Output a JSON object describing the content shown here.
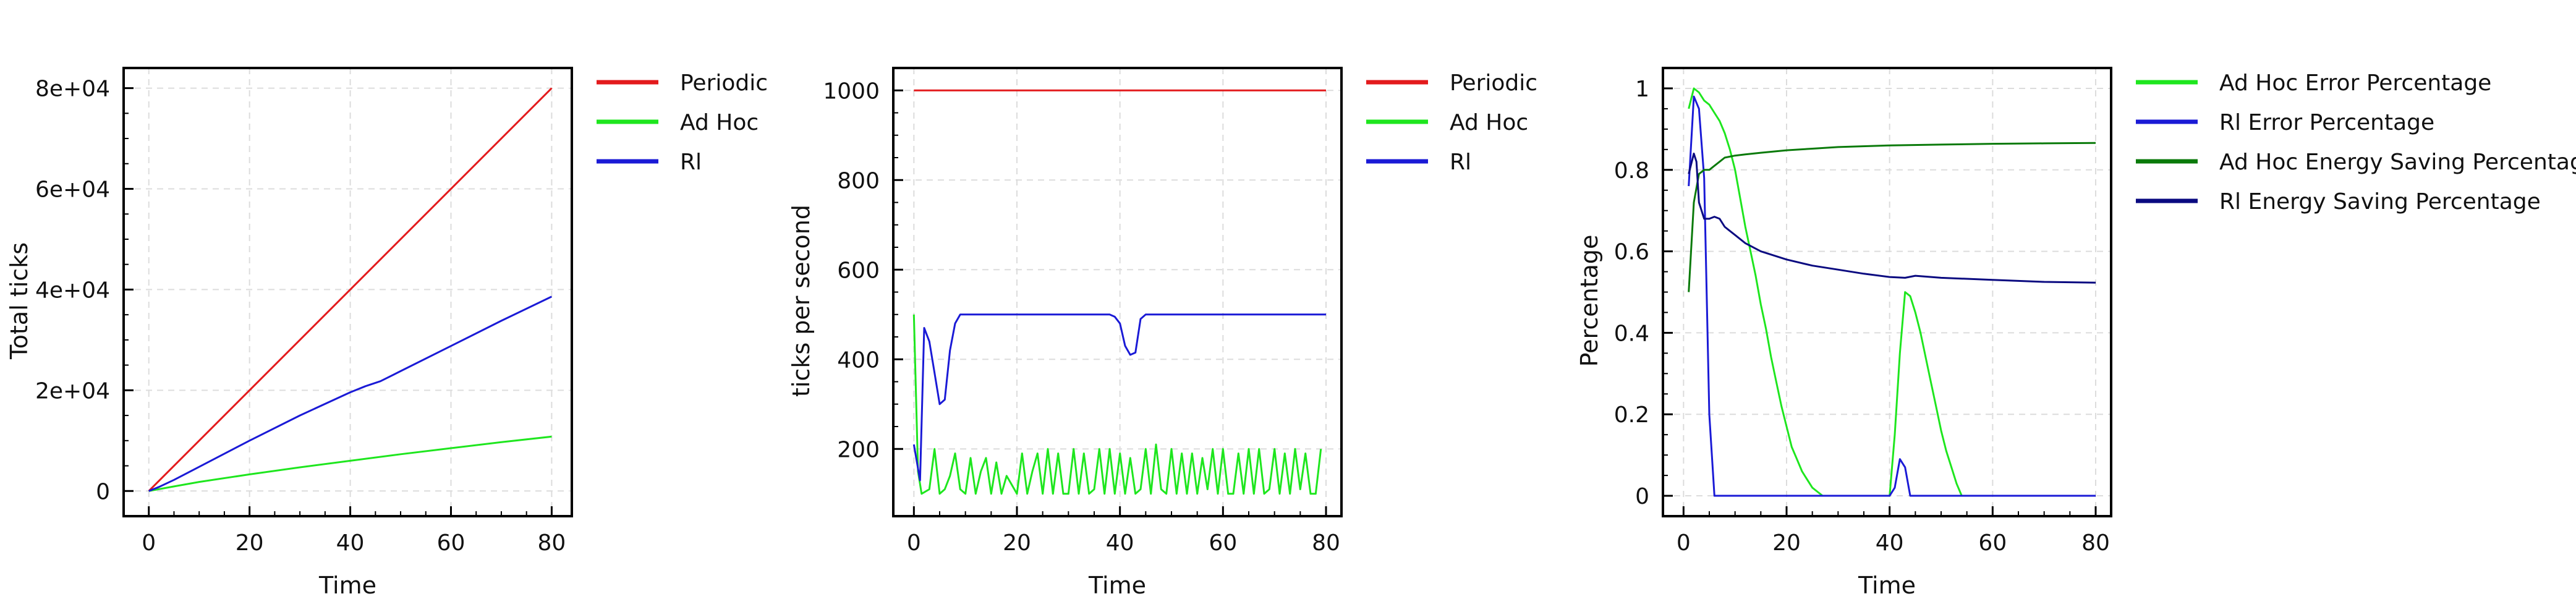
{
  "chart_data": [
    {
      "type": "line",
      "xlabel": "Time",
      "ylabel": "Total ticks",
      "xlim": [
        -5,
        84
      ],
      "ylim": [
        -5000,
        84000
      ],
      "xticks": [
        0,
        20,
        40,
        60,
        80
      ],
      "xtick_labels": [
        "0",
        "20",
        "40",
        "60",
        "80"
      ],
      "yticks": [
        0,
        20000,
        40000,
        60000,
        80000
      ],
      "ytick_labels": [
        "0",
        "2e+04",
        "4e+04",
        "6e+04",
        "8e+04"
      ],
      "grid": true,
      "legend_placement": "outside-right",
      "series": [
        {
          "name": "Periodic",
          "color": "#e31a1c",
          "x": [
            0,
            80
          ],
          "y": [
            0,
            80000
          ]
        },
        {
          "name": "Ad Hoc",
          "color": "#1ee61e",
          "x": [
            0,
            5,
            10,
            20,
            30,
            40,
            50,
            60,
            70,
            80
          ],
          "y": [
            0,
            900,
            1800,
            3300,
            4700,
            6000,
            7300,
            8500,
            9700,
            10800
          ]
        },
        {
          "name": "Rl",
          "color": "#1a1ad6",
          "x": [
            0,
            2,
            5,
            10,
            20,
            30,
            40,
            43,
            46,
            50,
            60,
            70,
            80
          ],
          "y": [
            0,
            800,
            2200,
            4800,
            10000,
            15000,
            19600,
            20800,
            21800,
            23800,
            28800,
            33800,
            38600
          ]
        }
      ]
    },
    {
      "type": "line",
      "xlabel": "Time",
      "ylabel": "ticks per second",
      "xlim": [
        -4,
        83
      ],
      "ylim": [
        50,
        1050
      ],
      "xticks": [
        0,
        20,
        40,
        60,
        80
      ],
      "xtick_labels": [
        "0",
        "20",
        "40",
        "60",
        "80"
      ],
      "yticks": [
        200,
        400,
        600,
        800,
        1000
      ],
      "ytick_labels": [
        "200",
        "400",
        "600",
        "800",
        "1000"
      ],
      "grid": true,
      "legend_placement": "outside-right",
      "series": [
        {
          "name": "Periodic",
          "color": "#e31a1c",
          "x": [
            0,
            80
          ],
          "y": [
            1000,
            1000
          ]
        },
        {
          "name": "Ad Hoc",
          "color": "#1ee61e",
          "x": [
            0,
            0.8,
            1.5,
            3,
            4,
            5,
            6,
            7,
            8,
            9,
            10,
            11,
            12,
            13,
            14,
            15,
            16,
            17,
            18,
            19,
            20,
            21,
            22,
            23,
            24,
            25,
            26,
            27,
            28,
            29,
            30,
            31,
            32,
            33,
            34,
            35,
            36,
            37,
            38,
            39,
            40,
            41,
            42,
            43,
            44,
            45,
            46,
            47,
            48,
            49,
            50,
            51,
            52,
            53,
            54,
            55,
            56,
            57,
            58,
            59,
            60,
            61,
            62,
            63,
            64,
            65,
            66,
            67,
            68,
            69,
            70,
            71,
            72,
            73,
            74,
            75,
            76,
            77,
            78,
            79
          ],
          "y": [
            500,
            150,
            100,
            110,
            200,
            100,
            110,
            140,
            190,
            110,
            100,
            180,
            100,
            150,
            180,
            100,
            170,
            100,
            140,
            120,
            100,
            190,
            100,
            150,
            190,
            100,
            200,
            100,
            190,
            100,
            100,
            200,
            100,
            190,
            100,
            110,
            200,
            100,
            200,
            100,
            190,
            100,
            180,
            100,
            110,
            200,
            100,
            210,
            110,
            100,
            200,
            100,
            190,
            100,
            190,
            100,
            180,
            110,
            200,
            100,
            200,
            100,
            100,
            190,
            100,
            200,
            100,
            200,
            100,
            110,
            200,
            100,
            190,
            100,
            200,
            110,
            190,
            100,
            100,
            200
          ]
        },
        {
          "name": "Rl",
          "color": "#1a1ad6",
          "x": [
            0,
            1.2,
            2,
            3,
            4,
            5,
            6,
            7,
            8,
            9,
            10,
            38,
            39,
            40,
            41,
            42,
            43,
            44,
            45,
            46,
            80
          ],
          "y": [
            210,
            130,
            470,
            440,
            370,
            300,
            310,
            420,
            480,
            500,
            500,
            500,
            495,
            480,
            430,
            410,
            415,
            490,
            500,
            500,
            500
          ]
        }
      ]
    },
    {
      "type": "line",
      "xlabel": "Time",
      "ylabel": "Percentage",
      "xlim": [
        -4,
        83
      ],
      "ylim": [
        -0.05,
        1.05
      ],
      "xticks": [
        0,
        20,
        40,
        60,
        80
      ],
      "xtick_labels": [
        "0",
        "20",
        "40",
        "60",
        "80"
      ],
      "yticks": [
        0,
        0.2,
        0.4,
        0.6,
        0.8,
        1
      ],
      "ytick_labels": [
        "0",
        "0.2",
        "0.4",
        "0.6",
        "0.8",
        "1"
      ],
      "grid": true,
      "legend_placement": "outside-right",
      "series": [
        {
          "name": "Ad Hoc Error Percentage",
          "color": "#1ee61e",
          "x": [
            1,
            2,
            3,
            4,
            5,
            6,
            7,
            8,
            9,
            10,
            11,
            12,
            13,
            14,
            15,
            16,
            17,
            18,
            19,
            20,
            21,
            22,
            23,
            24,
            25,
            26,
            27,
            28,
            29,
            40,
            41,
            42,
            43,
            44,
            45,
            46,
            47,
            48,
            49,
            50,
            51,
            52,
            53,
            54,
            80
          ],
          "y": [
            0.95,
            1.0,
            0.99,
            0.97,
            0.96,
            0.94,
            0.92,
            0.89,
            0.85,
            0.8,
            0.73,
            0.66,
            0.6,
            0.54,
            0.47,
            0.41,
            0.34,
            0.28,
            0.22,
            0.17,
            0.12,
            0.09,
            0.06,
            0.04,
            0.02,
            0.01,
            0,
            0,
            0,
            0,
            0.15,
            0.35,
            0.5,
            0.49,
            0.45,
            0.4,
            0.34,
            0.28,
            0.22,
            0.16,
            0.11,
            0.07,
            0.03,
            0,
            0
          ]
        },
        {
          "name": "Rl Error Percentage",
          "color": "#1a1ad6",
          "x": [
            1,
            2,
            3,
            4,
            5,
            6,
            7,
            40,
            41,
            42,
            43,
            44,
            80
          ],
          "y": [
            0.76,
            0.98,
            0.95,
            0.78,
            0.2,
            0,
            0,
            0,
            0.02,
            0.09,
            0.07,
            0,
            0
          ]
        },
        {
          "name": "Ad Hoc Energy Saving Percentage",
          "color": "#0a7a0a",
          "x": [
            1,
            2,
            3,
            4,
            5,
            6,
            7,
            8,
            10,
            12,
            15,
            20,
            25,
            30,
            40,
            50,
            60,
            70,
            80
          ],
          "y": [
            0.5,
            0.72,
            0.79,
            0.8,
            0.8,
            0.81,
            0.82,
            0.83,
            0.835,
            0.838,
            0.842,
            0.848,
            0.852,
            0.856,
            0.86,
            0.862,
            0.864,
            0.865,
            0.866
          ]
        },
        {
          "name": "Rl Energy Saving Percentage",
          "color": "#0a0a80",
          "x": [
            1,
            2,
            2.5,
            3,
            4,
            5,
            6,
            7,
            8,
            10,
            12,
            15,
            20,
            25,
            30,
            35,
            40,
            43,
            45,
            50,
            60,
            70,
            80
          ],
          "y": [
            0.79,
            0.84,
            0.82,
            0.72,
            0.68,
            0.68,
            0.685,
            0.68,
            0.66,
            0.64,
            0.62,
            0.6,
            0.58,
            0.565,
            0.555,
            0.545,
            0.537,
            0.535,
            0.54,
            0.535,
            0.53,
            0.525,
            0.523
          ]
        }
      ]
    }
  ]
}
